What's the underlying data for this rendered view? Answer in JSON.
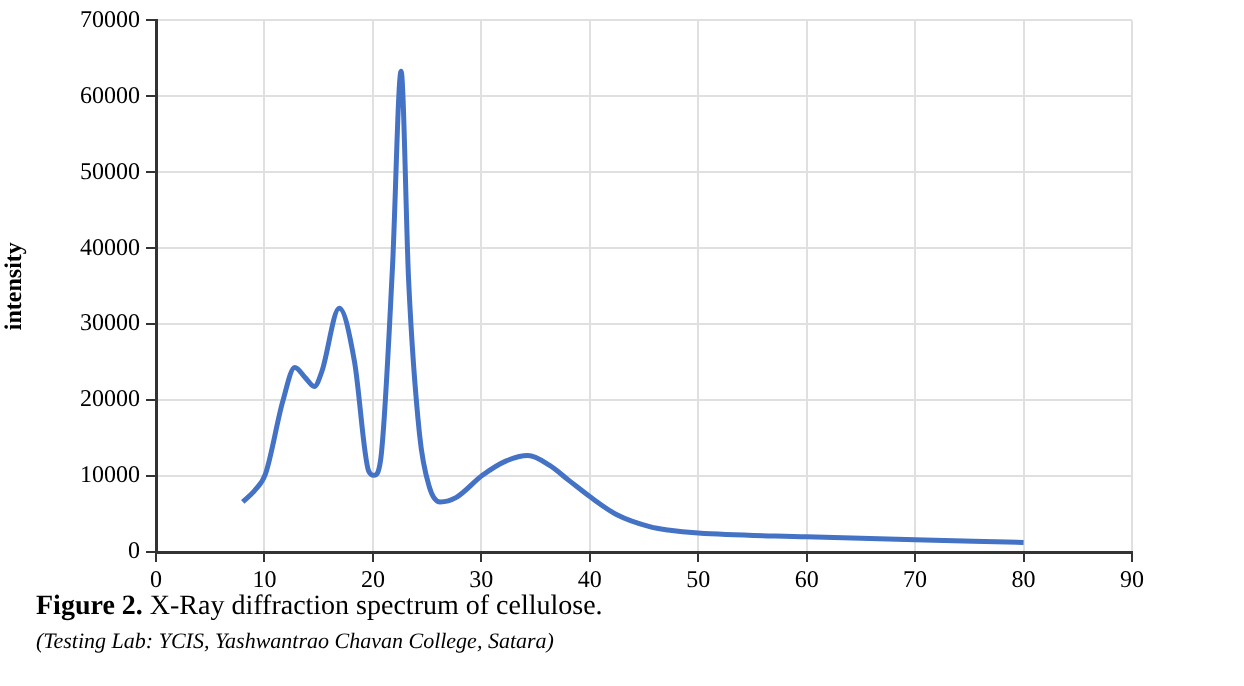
{
  "chart_data": {
    "type": "line",
    "ylabel": "intensity",
    "x": [
      8,
      9.1,
      10.1,
      11.7,
      12.8,
      13.8,
      14.6,
      15.3,
      16.9,
      18.3,
      19.6,
      20.1,
      20.7,
      21.8,
      22.6,
      23.3,
      24.3,
      25.2,
      26.2,
      27.7,
      30.1,
      32.3,
      34.3,
      36.3,
      38.1,
      40.1,
      42.5,
      45.6,
      47.2,
      50,
      60,
      70,
      80
    ],
    "series": [
      {
        "color": "#4472c4",
        "values": [
          6600,
          8100,
          10300,
          19900,
          24300,
          22900,
          21800,
          23800,
          32100,
          25100,
          10700,
          10100,
          12000,
          37300,
          63300,
          35600,
          15500,
          8600,
          6600,
          7200,
          10100,
          12000,
          12700,
          11400,
          9400,
          7200,
          4900,
          3300,
          2900,
          2500,
          2000,
          1600,
          1250
        ]
      }
    ],
    "xlim": [
      0,
      90
    ],
    "xticks": [
      0,
      10,
      20,
      30,
      40,
      50,
      60,
      70,
      80,
      90
    ],
    "ylim": [
      0,
      70000
    ],
    "yticks": [
      0,
      10000,
      20000,
      30000,
      40000,
      50000,
      60000,
      70000
    ],
    "grid": true,
    "legend": false,
    "marker": "none",
    "line_style": "solid",
    "annotations": [
      "Figure 2. X-Ray diffraction spectrum of cellulose.",
      "(Testing Lab: YCIS, Yashwantrao Chavan College, Satara)"
    ]
  }
}
